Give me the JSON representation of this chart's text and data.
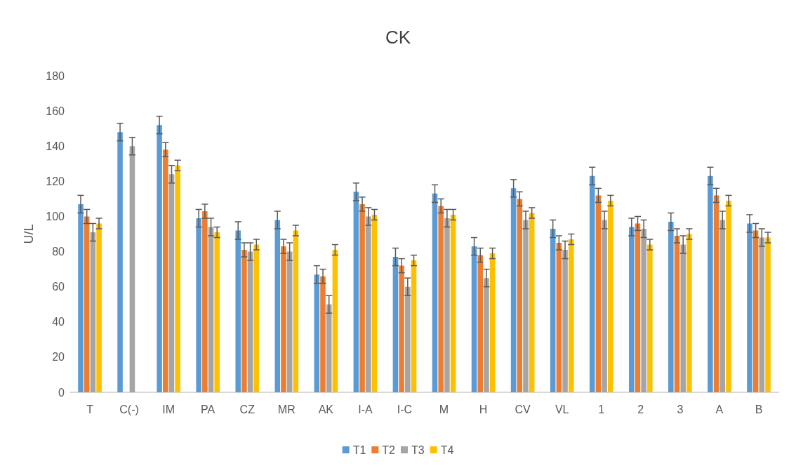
{
  "chart_data": {
    "type": "bar",
    "title": "CK",
    "ylabel": "U/L",
    "categories": [
      "T",
      "C(-)",
      "IM",
      "PA",
      "CZ",
      "MR",
      "AK",
      "I-A",
      "I-C",
      "M",
      "H",
      "CV",
      "VL",
      "1",
      "2",
      "3",
      "A",
      "B"
    ],
    "series": [
      {
        "name": "T1",
        "color": "#5b9bd5",
        "values": [
          107,
          148,
          152,
          99,
          92,
          98,
          67,
          114,
          77,
          113,
          83,
          116,
          93,
          123,
          94,
          97,
          123,
          96
        ],
        "errors": [
          5,
          5,
          5,
          5,
          5,
          5,
          5,
          5,
          5,
          5,
          5,
          5,
          5,
          5,
          5,
          5,
          5,
          5
        ]
      },
      {
        "name": "T2",
        "color": "#ed7d31",
        "values": [
          100,
          null,
          138,
          103,
          81,
          83,
          66,
          107,
          72,
          106,
          78,
          110,
          85,
          112,
          96,
          89,
          112,
          92
        ],
        "errors": [
          4,
          null,
          4,
          4,
          4,
          4,
          4,
          4,
          4,
          4,
          4,
          4,
          4,
          4,
          4,
          4,
          4,
          4
        ]
      },
      {
        "name": "T3",
        "color": "#a5a5a5",
        "values": [
          91,
          140,
          124,
          94,
          80,
          80,
          50,
          100,
          60,
          99,
          65,
          98,
          81,
          98,
          93,
          84,
          98,
          88
        ],
        "errors": [
          5,
          5,
          5,
          5,
          5,
          5,
          5,
          5,
          5,
          5,
          5,
          5,
          5,
          5,
          5,
          5,
          5,
          5
        ]
      },
      {
        "name": "T4",
        "color": "#ffc000",
        "values": [
          96,
          null,
          129,
          91,
          84,
          92,
          81,
          101,
          75,
          101,
          79,
          102,
          87,
          109,
          84,
          90,
          109,
          88
        ],
        "errors": [
          3,
          null,
          3,
          3,
          3,
          3,
          3,
          3,
          3,
          3,
          3,
          3,
          3,
          3,
          3,
          3,
          3,
          3
        ]
      }
    ],
    "ylim": [
      0,
      180
    ],
    "yticks": [
      0,
      20,
      40,
      60,
      80,
      100,
      120,
      140,
      160,
      180
    ],
    "legend": "bottom"
  }
}
